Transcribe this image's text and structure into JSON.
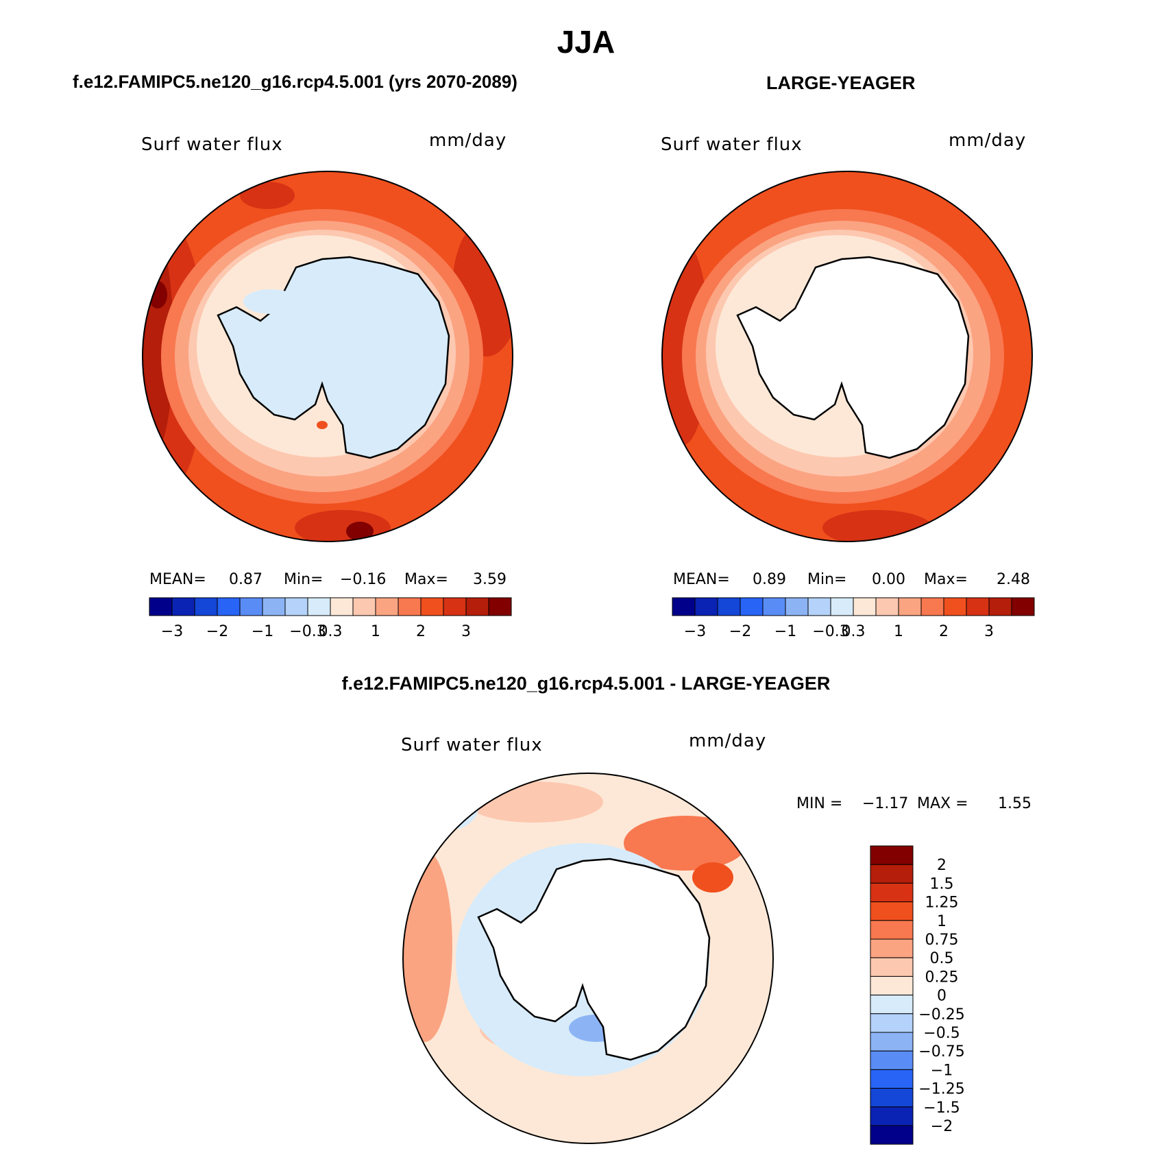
{
  "page": {
    "season": "JJA",
    "panel_left_title": "f.e12.FAMIPC5.ne120_g16.rcp4.5.001 (yrs 2070-2089)",
    "panel_right_title": "LARGE-YEAGER",
    "panel_bottom_title": "f.e12.FAMIPC5.ne120_g16.rcp4.5.001 - LARGE-YEAGER"
  },
  "panels": {
    "left": {
      "variable": "Surf water flux",
      "units": "mm/day",
      "stats": {
        "mean_label": "MEAN=",
        "mean": "0.87",
        "min_label": "Min=",
        "min": "−0.16",
        "max_label": "Max=",
        "max": "3.59"
      }
    },
    "right": {
      "variable": "Surf water flux",
      "units": "mm/day",
      "stats": {
        "mean_label": "MEAN=",
        "mean": "0.89",
        "min_label": "Min=",
        "min": "0.00",
        "max_label": "Max=",
        "max": "2.48"
      }
    },
    "bottom": {
      "variable": "Surf water flux",
      "units": "mm/day",
      "stats": {
        "min_label": "MIN =",
        "min": "−1.17",
        "max_label": "MAX =",
        "max": "1.55"
      }
    }
  },
  "colorbar_horizontal": {
    "colors": [
      "#00008b",
      "#0a23b4",
      "#1446d7",
      "#2864f5",
      "#5a8cf5",
      "#8cb4f5",
      "#b4d2fa",
      "#d7ebfa",
      "#fde8d7",
      "#fdc8b0",
      "#fba482",
      "#f87850",
      "#f0501e",
      "#d73214",
      "#b41e0a",
      "#820000"
    ],
    "tick_labels": [
      "−3",
      "−2",
      "−1",
      "−0.3",
      "0.3",
      "1",
      "2",
      "3"
    ],
    "tick_after_box": [
      1,
      3,
      5,
      7,
      8,
      10,
      12,
      14
    ]
  },
  "colorbar_vertical": {
    "colors_top_to_bottom": [
      "#820000",
      "#b41e0a",
      "#d73214",
      "#f0501e",
      "#f87850",
      "#fba482",
      "#fdc8b0",
      "#fde8d7",
      "#d7ebfa",
      "#b4d2fa",
      "#8cb4f5",
      "#5a8cf5",
      "#2864f5",
      "#1446d7",
      "#0a23b4",
      "#00008b"
    ],
    "tick_labels": [
      "2",
      "1.5",
      "1.25",
      "1",
      "0.75",
      "0.5",
      "0.25",
      "0",
      "−0.25",
      "−0.5",
      "−0.75",
      "−1",
      "−1.25",
      "−1.5",
      "−2"
    ]
  }
}
